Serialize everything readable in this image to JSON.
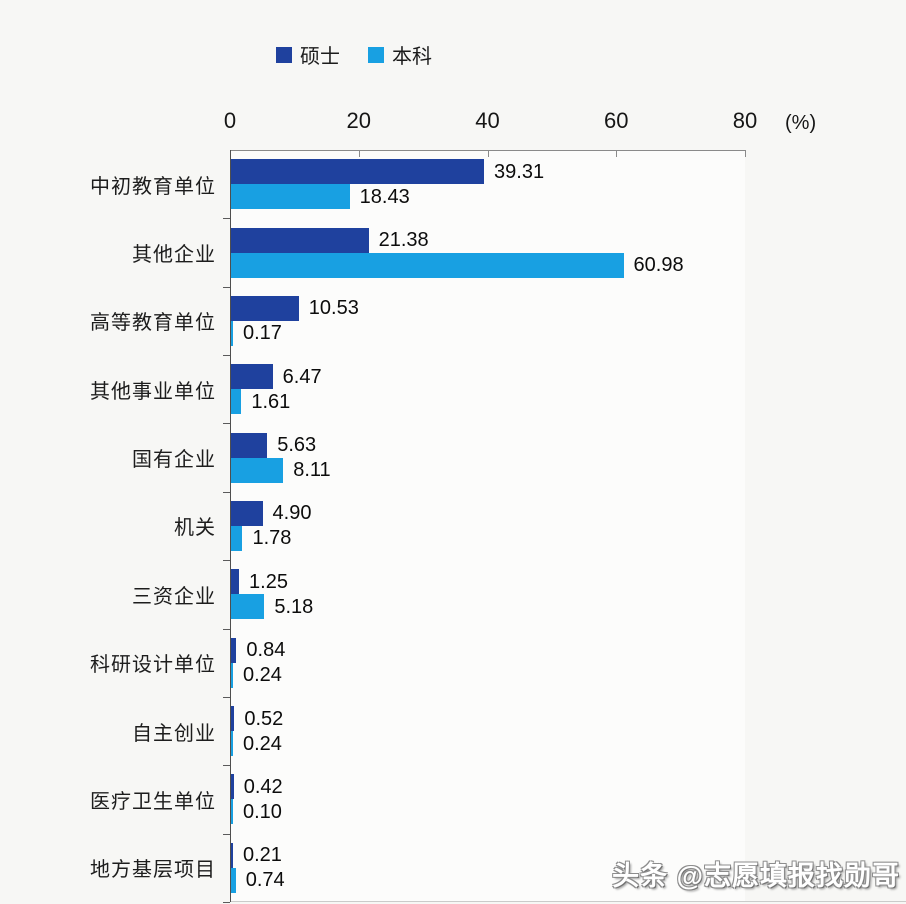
{
  "page": {
    "background": "#f7f7f5"
  },
  "legend": {
    "items": [
      {
        "label": "硕士",
        "color": "#1f419e"
      },
      {
        "label": "本科",
        "color": "#18a0e2"
      }
    ]
  },
  "axis": {
    "tick_values": [
      0,
      20,
      40,
      60,
      80
    ],
    "tick_labels": [
      "0",
      "20",
      "40",
      "60",
      "80"
    ],
    "unit_label": "(%)",
    "max": 80
  },
  "chart_data": {
    "type": "bar",
    "orientation": "horizontal",
    "title": "",
    "xlabel": "(%)",
    "ylabel": "",
    "xlim": [
      0,
      80
    ],
    "grid": false,
    "legend_position": "top",
    "value_label_decimals": 2,
    "categories": [
      "中初教育单位",
      "其他企业",
      "高等教育单位",
      "其他事业单位",
      "国有企业",
      "机关",
      "三资企业",
      "科研设计单位",
      "自主创业",
      "医疗卫生单位",
      "地方基层项目"
    ],
    "series": [
      {
        "name": "硕士",
        "color": "#1f419e",
        "values": [
          39.31,
          21.38,
          10.53,
          6.47,
          5.63,
          4.9,
          1.25,
          0.84,
          0.52,
          0.42,
          0.21
        ]
      },
      {
        "name": "本科",
        "color": "#18a0e2",
        "values": [
          18.43,
          60.98,
          0.17,
          1.61,
          8.11,
          1.78,
          5.18,
          0.24,
          0.24,
          0.1,
          0.74
        ]
      }
    ]
  },
  "watermark": {
    "text": "头条 @志愿填报找勋哥"
  }
}
